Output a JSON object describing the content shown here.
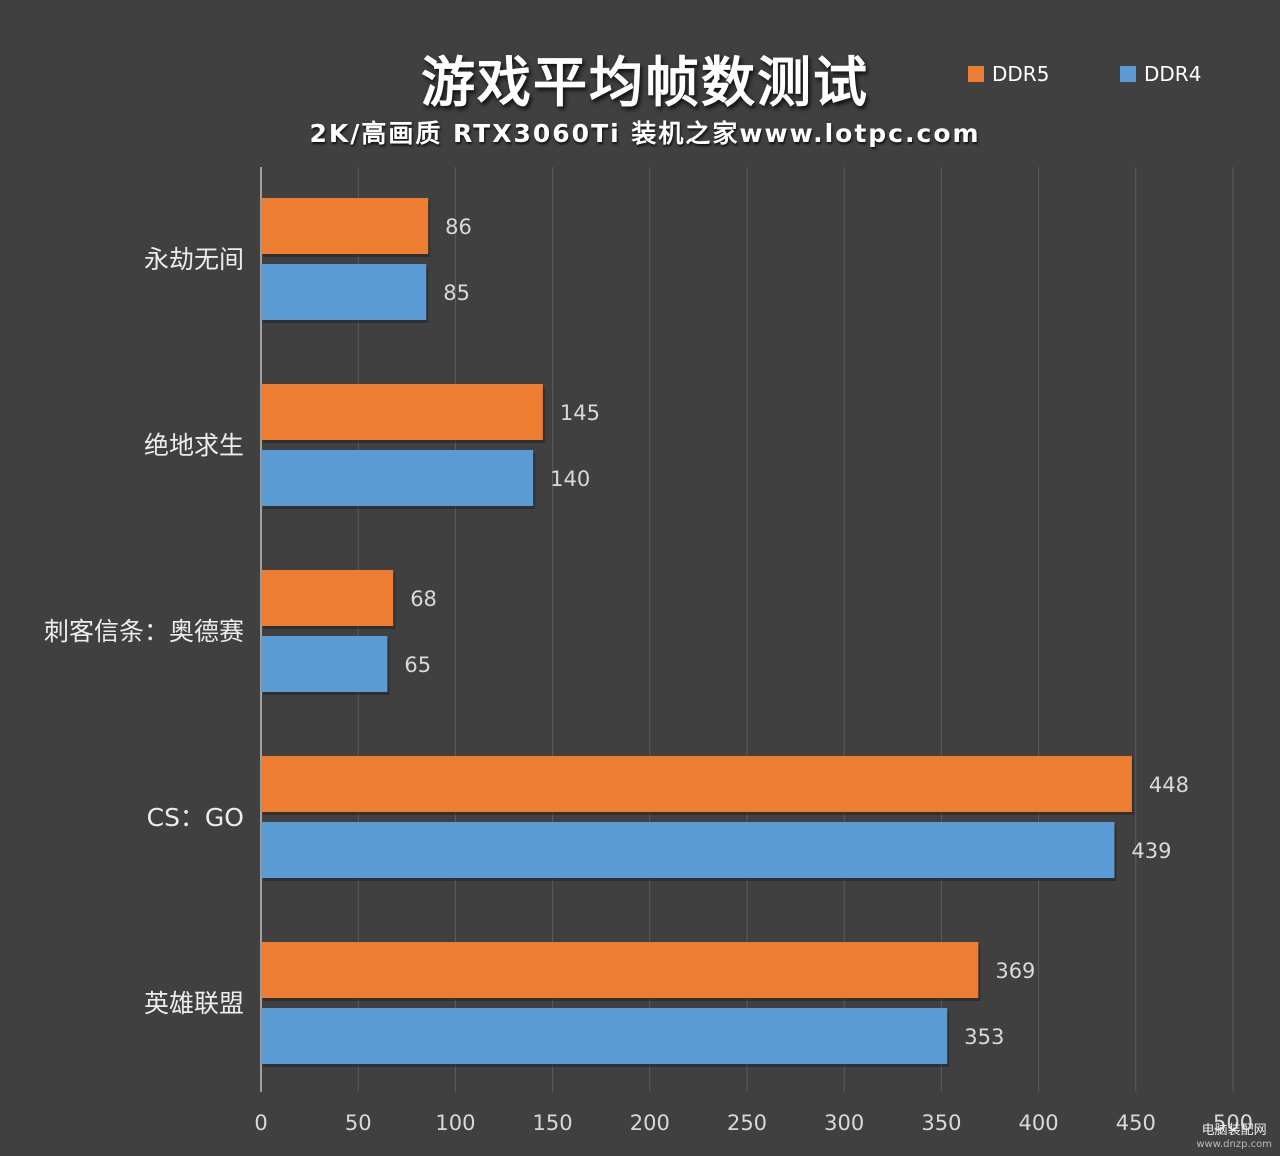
{
  "chart_data": {
    "type": "bar",
    "orientation": "horizontal",
    "title": "游戏平均帧数测试",
    "subtitle": "2K/高画质 RTX3060Ti 装机之家www.lotpc.com",
    "categories": [
      "永劫无间",
      "绝地求生",
      "刺客信条：奥德赛",
      "CS：GO",
      "英雄联盟"
    ],
    "series": [
      {
        "name": "DDR5",
        "color": "#ED7D31",
        "values": [
          86,
          145,
          68,
          448,
          369
        ]
      },
      {
        "name": "DDR4",
        "color": "#5B9BD5",
        "values": [
          85,
          140,
          65,
          439,
          353
        ]
      }
    ],
    "xlim": [
      0,
      500
    ],
    "xticks": [
      0,
      50,
      100,
      150,
      200,
      250,
      300,
      350,
      400,
      450,
      500
    ],
    "grid": true,
    "legend_position": "top-right",
    "data_labels": true
  },
  "watermark": {
    "line1": "电脑装配网",
    "line2": "www.dnzp.com"
  }
}
